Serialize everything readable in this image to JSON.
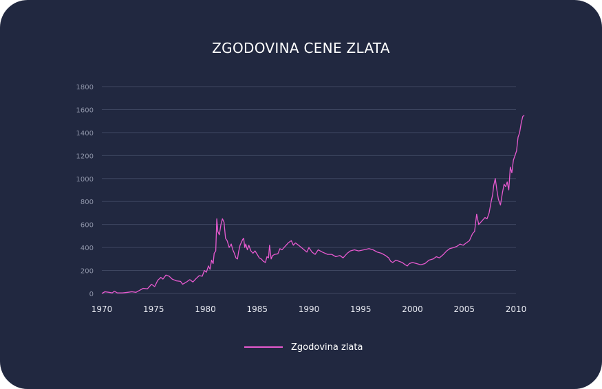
{
  "chart_data": {
    "type": "line",
    "title": "ZGODOVINA CENE ZLATA",
    "xlabel": "",
    "ylabel": "",
    "xlim": [
      1970,
      2010
    ],
    "ylim": [
      0,
      1800
    ],
    "x_ticks": [
      "1970",
      "1975",
      "1980",
      "1985",
      "1990",
      "1995",
      "2000",
      "2005",
      "2010"
    ],
    "y_ticks": [
      "0",
      "200",
      "400",
      "600",
      "800",
      "1000",
      "1200",
      "1400",
      "1600",
      "1800"
    ],
    "grid": true,
    "legend_position": "bottom",
    "series": [
      {
        "name": "Zgodovina zlata",
        "color": "#e85ad0",
        "points": [
          [
            1970.0,
            0
          ],
          [
            1970.3,
            15
          ],
          [
            1970.7,
            10
          ],
          [
            1971.0,
            5
          ],
          [
            1971.2,
            20
          ],
          [
            1971.5,
            5
          ],
          [
            1972.0,
            5
          ],
          [
            1972.5,
            10
          ],
          [
            1972.9,
            15
          ],
          [
            1973.3,
            10
          ],
          [
            1973.6,
            25
          ],
          [
            1974.0,
            45
          ],
          [
            1974.4,
            40
          ],
          [
            1974.8,
            80
          ],
          [
            1975.1,
            60
          ],
          [
            1975.4,
            115
          ],
          [
            1975.7,
            140
          ],
          [
            1975.9,
            125
          ],
          [
            1976.2,
            160
          ],
          [
            1976.5,
            150
          ],
          [
            1976.8,
            125
          ],
          [
            1977.2,
            110
          ],
          [
            1977.6,
            105
          ],
          [
            1977.8,
            80
          ],
          [
            1978.1,
            95
          ],
          [
            1978.5,
            120
          ],
          [
            1978.8,
            100
          ],
          [
            1979.1,
            130
          ],
          [
            1979.4,
            155
          ],
          [
            1979.7,
            150
          ],
          [
            1979.9,
            200
          ],
          [
            1980.1,
            185
          ],
          [
            1980.3,
            240
          ],
          [
            1980.45,
            210
          ],
          [
            1980.6,
            290
          ],
          [
            1980.75,
            260
          ],
          [
            1980.85,
            350
          ],
          [
            1981.0,
            370
          ],
          [
            1981.1,
            650
          ],
          [
            1981.2,
            540
          ],
          [
            1981.35,
            510
          ],
          [
            1981.5,
            600
          ],
          [
            1981.65,
            650
          ],
          [
            1981.8,
            620
          ],
          [
            1981.95,
            480
          ],
          [
            1982.1,
            460
          ],
          [
            1982.3,
            400
          ],
          [
            1982.5,
            430
          ],
          [
            1982.65,
            380
          ],
          [
            1982.8,
            350
          ],
          [
            1982.95,
            310
          ],
          [
            1983.1,
            300
          ],
          [
            1983.2,
            360
          ],
          [
            1983.35,
            420
          ],
          [
            1983.5,
            450
          ],
          [
            1983.6,
            470
          ],
          [
            1983.7,
            480
          ],
          [
            1983.8,
            400
          ],
          [
            1983.9,
            430
          ],
          [
            1984.05,
            380
          ],
          [
            1984.2,
            420
          ],
          [
            1984.4,
            370
          ],
          [
            1984.6,
            350
          ],
          [
            1984.8,
            370
          ],
          [
            1985.0,
            340
          ],
          [
            1985.2,
            310
          ],
          [
            1985.4,
            300
          ],
          [
            1985.6,
            280
          ],
          [
            1985.8,
            270
          ],
          [
            1985.95,
            320
          ],
          [
            1986.1,
            310
          ],
          [
            1986.2,
            420
          ],
          [
            1986.35,
            300
          ],
          [
            1986.5,
            330
          ],
          [
            1986.7,
            340
          ],
          [
            1987.0,
            345
          ],
          [
            1987.2,
            390
          ],
          [
            1987.4,
            380
          ],
          [
            1987.6,
            400
          ],
          [
            1987.8,
            420
          ],
          [
            1988.0,
            440
          ],
          [
            1988.3,
            460
          ],
          [
            1988.5,
            420
          ],
          [
            1988.7,
            440
          ],
          [
            1989.0,
            420
          ],
          [
            1989.4,
            390
          ],
          [
            1989.8,
            360
          ],
          [
            1990.0,
            400
          ],
          [
            1990.3,
            360
          ],
          [
            1990.6,
            340
          ],
          [
            1990.9,
            380
          ],
          [
            1991.3,
            360
          ],
          [
            1991.8,
            340
          ],
          [
            1992.2,
            340
          ],
          [
            1992.6,
            320
          ],
          [
            1993.0,
            330
          ],
          [
            1993.3,
            310
          ],
          [
            1993.7,
            350
          ],
          [
            1994.0,
            370
          ],
          [
            1994.4,
            380
          ],
          [
            1994.8,
            370
          ],
          [
            1995.3,
            380
          ],
          [
            1995.8,
            390
          ],
          [
            1996.2,
            380
          ],
          [
            1996.6,
            360
          ],
          [
            1997.0,
            350
          ],
          [
            1997.4,
            330
          ],
          [
            1997.7,
            310
          ],
          [
            1997.9,
            280
          ],
          [
            1998.1,
            270
          ],
          [
            1998.4,
            290
          ],
          [
            1998.7,
            280
          ],
          [
            1999.0,
            270
          ],
          [
            1999.3,
            250
          ],
          [
            1999.5,
            240
          ],
          [
            1999.7,
            260
          ],
          [
            2000.0,
            270
          ],
          [
            2000.4,
            260
          ],
          [
            2000.8,
            250
          ],
          [
            2001.2,
            260
          ],
          [
            2001.6,
            290
          ],
          [
            2002.0,
            300
          ],
          [
            2002.3,
            320
          ],
          [
            2002.6,
            310
          ],
          [
            2003.0,
            340
          ],
          [
            2003.3,
            370
          ],
          [
            2003.6,
            390
          ],
          [
            2004.0,
            400
          ],
          [
            2004.3,
            410
          ],
          [
            2004.6,
            430
          ],
          [
            2004.9,
            420
          ],
          [
            2005.2,
            440
          ],
          [
            2005.5,
            460
          ],
          [
            2005.8,
            520
          ],
          [
            2006.0,
            540
          ],
          [
            2006.2,
            690
          ],
          [
            2006.4,
            600
          ],
          [
            2006.6,
            620
          ],
          [
            2006.8,
            640
          ],
          [
            2007.0,
            660
          ],
          [
            2007.2,
            650
          ],
          [
            2007.4,
            700
          ],
          [
            2007.6,
            800
          ],
          [
            2007.75,
            860
          ],
          [
            2007.85,
            940
          ],
          [
            2008.0,
            1000
          ],
          [
            2008.15,
            900
          ],
          [
            2008.3,
            820
          ],
          [
            2008.5,
            770
          ],
          [
            2008.7,
            880
          ],
          [
            2008.85,
            950
          ],
          [
            2009.0,
            930
          ],
          [
            2009.15,
            970
          ],
          [
            2009.3,
            900
          ],
          [
            2009.45,
            1100
          ],
          [
            2009.6,
            1050
          ],
          [
            2009.75,
            1160
          ],
          [
            2009.9,
            1200
          ],
          [
            2010.05,
            1240
          ],
          [
            2010.2,
            1360
          ],
          [
            2010.35,
            1400
          ],
          [
            2010.5,
            1480
          ],
          [
            2010.65,
            1540
          ],
          [
            2010.8,
            1550
          ]
        ]
      }
    ]
  }
}
